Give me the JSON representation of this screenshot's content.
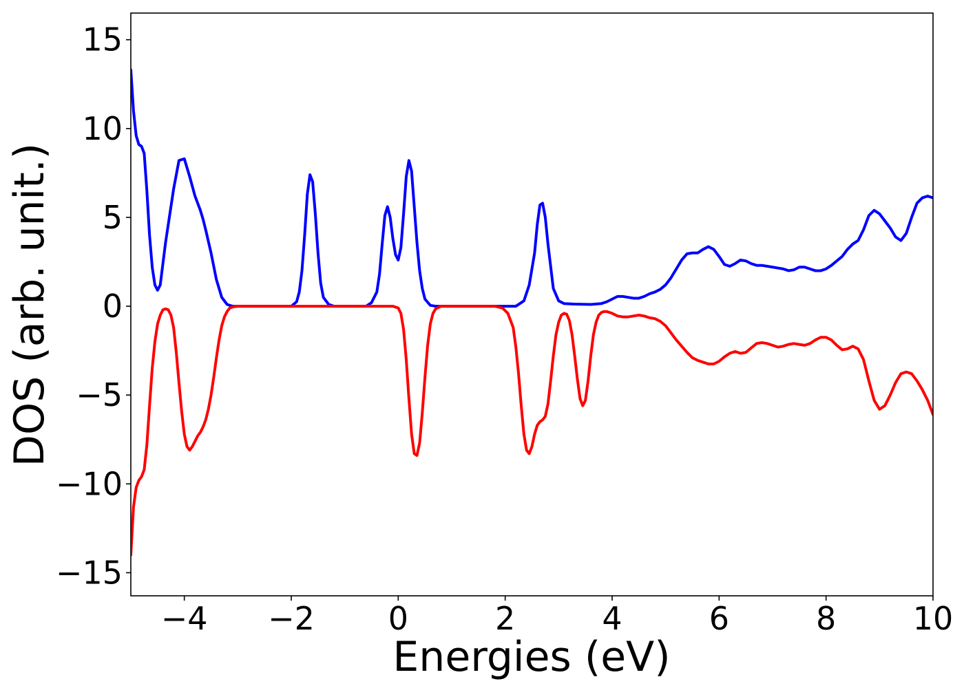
{
  "chart_data": {
    "type": "line",
    "xlabel": "Energies (eV)",
    "ylabel": "DOS (arb. unit.)",
    "xlim": [
      -5,
      10
    ],
    "ylim": [
      -16.3,
      16.5
    ],
    "grid": false,
    "legend": "none",
    "x_ticks": [
      -4,
      -2,
      0,
      2,
      4,
      6,
      8,
      10
    ],
    "x_tick_labels": [
      "−4",
      "−2",
      "0",
      "2",
      "4",
      "6",
      "8",
      "10"
    ],
    "y_ticks": [
      -15,
      -10,
      -5,
      0,
      5,
      10,
      15
    ],
    "y_tick_labels": [
      "−15",
      "−10",
      "−5",
      "0",
      "5",
      "10",
      "15"
    ],
    "series": [
      {
        "color": "#0000ff",
        "x": [
          -5.0,
          -4.95,
          -4.9,
          -4.85,
          -4.8,
          -4.75,
          -4.7,
          -4.65,
          -4.6,
          -4.55,
          -4.5,
          -4.45,
          -4.4,
          -4.35,
          -4.3,
          -4.2,
          -4.1,
          -4.0,
          -3.9,
          -3.8,
          -3.75,
          -3.7,
          -3.65,
          -3.6,
          -3.5,
          -3.4,
          -3.3,
          -3.2,
          -3.1,
          -3.0,
          -2.9,
          -2.8,
          -2.5,
          -2.2,
          -2.0,
          -1.9,
          -1.85,
          -1.8,
          -1.75,
          -1.7,
          -1.65,
          -1.6,
          -1.55,
          -1.5,
          -1.45,
          -1.4,
          -1.3,
          -1.2,
          -1.0,
          -0.8,
          -0.6,
          -0.5,
          -0.4,
          -0.35,
          -0.3,
          -0.25,
          -0.2,
          -0.15,
          -0.1,
          -0.05,
          0.0,
          0.05,
          0.1,
          0.15,
          0.2,
          0.25,
          0.3,
          0.35,
          0.4,
          0.45,
          0.5,
          0.6,
          0.7,
          0.8,
          1.0,
          1.5,
          2.0,
          2.2,
          2.35,
          2.45,
          2.55,
          2.6,
          2.65,
          2.7,
          2.75,
          2.8,
          2.9,
          3.0,
          3.1,
          3.3,
          3.6,
          3.8,
          3.9,
          4.0,
          4.1,
          4.2,
          4.3,
          4.4,
          4.5,
          4.6,
          4.7,
          4.8,
          4.9,
          5.0,
          5.1,
          5.2,
          5.3,
          5.4,
          5.5,
          5.6,
          5.7,
          5.8,
          5.9,
          6.0,
          6.1,
          6.2,
          6.3,
          6.4,
          6.5,
          6.6,
          6.7,
          6.8,
          6.9,
          7.0,
          7.1,
          7.2,
          7.3,
          7.4,
          7.5,
          7.6,
          7.7,
          7.8,
          7.9,
          8.0,
          8.1,
          8.2,
          8.3,
          8.4,
          8.5,
          8.6,
          8.7,
          8.8,
          8.9,
          9.0,
          9.1,
          9.2,
          9.3,
          9.4,
          9.5,
          9.6,
          9.7,
          9.8,
          9.9,
          10.0
        ],
        "y": [
          13.3,
          11.0,
          9.6,
          9.1,
          9.0,
          8.6,
          6.5,
          4.0,
          2.2,
          1.2,
          0.9,
          1.2,
          2.4,
          3.6,
          4.6,
          6.6,
          8.2,
          8.3,
          7.3,
          6.2,
          5.8,
          5.4,
          4.9,
          4.3,
          3.0,
          1.5,
          0.5,
          0.1,
          0.0,
          0.0,
          0.0,
          0.0,
          0.0,
          0.0,
          0.0,
          0.25,
          0.8,
          2.0,
          4.0,
          6.3,
          7.4,
          7.0,
          5.2,
          3.0,
          1.3,
          0.5,
          0.1,
          0.0,
          0.0,
          0.0,
          0.0,
          0.2,
          0.8,
          1.8,
          3.5,
          5.1,
          5.6,
          5.0,
          3.8,
          2.9,
          2.6,
          3.3,
          5.2,
          7.3,
          8.2,
          7.6,
          5.6,
          3.6,
          2.0,
          1.0,
          0.4,
          0.05,
          0.0,
          0.0,
          0.0,
          0.0,
          0.0,
          0.0,
          0.3,
          1.2,
          3.0,
          4.6,
          5.7,
          5.8,
          5.0,
          3.5,
          1.0,
          0.3,
          0.15,
          0.12,
          0.1,
          0.15,
          0.25,
          0.4,
          0.55,
          0.55,
          0.5,
          0.45,
          0.45,
          0.55,
          0.7,
          0.8,
          0.95,
          1.2,
          1.6,
          2.1,
          2.6,
          2.95,
          3.0,
          3.0,
          3.2,
          3.35,
          3.2,
          2.8,
          2.35,
          2.25,
          2.4,
          2.6,
          2.55,
          2.4,
          2.3,
          2.3,
          2.25,
          2.2,
          2.15,
          2.1,
          2.0,
          2.05,
          2.2,
          2.2,
          2.1,
          2.0,
          2.0,
          2.1,
          2.3,
          2.55,
          2.8,
          3.2,
          3.5,
          3.7,
          4.3,
          5.1,
          5.4,
          5.2,
          4.8,
          4.4,
          3.9,
          3.7,
          4.1,
          5.0,
          5.8,
          6.1,
          6.2,
          6.1
        ]
      },
      {
        "color": "#ff0000",
        "x": [
          -5.0,
          -4.95,
          -4.9,
          -4.85,
          -4.8,
          -4.75,
          -4.7,
          -4.65,
          -4.6,
          -4.55,
          -4.5,
          -4.45,
          -4.4,
          -4.35,
          -4.3,
          -4.25,
          -4.2,
          -4.15,
          -4.1,
          -4.05,
          -4.0,
          -3.95,
          -3.9,
          -3.85,
          -3.8,
          -3.75,
          -3.7,
          -3.65,
          -3.6,
          -3.55,
          -3.5,
          -3.45,
          -3.4,
          -3.35,
          -3.3,
          -3.25,
          -3.2,
          -3.15,
          -3.1,
          -3.05,
          -3.0,
          -2.95,
          -2.9,
          -2.85,
          -2.8,
          -2.5,
          -0.1,
          0.0,
          0.05,
          0.1,
          0.15,
          0.2,
          0.25,
          0.3,
          0.35,
          0.4,
          0.45,
          0.5,
          0.55,
          0.6,
          0.65,
          0.7,
          0.8,
          1.0,
          1.8,
          1.95,
          2.05,
          2.15,
          2.2,
          2.25,
          2.3,
          2.35,
          2.4,
          2.45,
          2.5,
          2.55,
          2.6,
          2.65,
          2.7,
          2.75,
          2.8,
          2.85,
          2.9,
          2.95,
          3.0,
          3.05,
          3.1,
          3.15,
          3.2,
          3.25,
          3.3,
          3.35,
          3.4,
          3.45,
          3.5,
          3.55,
          3.6,
          3.65,
          3.7,
          3.75,
          3.8,
          3.85,
          3.9,
          3.95,
          4.0,
          4.1,
          4.2,
          4.3,
          4.4,
          4.5,
          4.6,
          4.7,
          4.8,
          4.9,
          5.0,
          5.1,
          5.2,
          5.3,
          5.4,
          5.5,
          5.6,
          5.7,
          5.8,
          5.9,
          6.0,
          6.1,
          6.2,
          6.3,
          6.4,
          6.5,
          6.6,
          6.7,
          6.8,
          6.9,
          7.0,
          7.1,
          7.2,
          7.3,
          7.4,
          7.5,
          7.6,
          7.7,
          7.8,
          7.9,
          8.0,
          8.1,
          8.2,
          8.3,
          8.4,
          8.5,
          8.6,
          8.7,
          8.8,
          8.9,
          9.0,
          9.1,
          9.2,
          9.3,
          9.4,
          9.5,
          9.6,
          9.7,
          9.8,
          9.9,
          10.0
        ],
        "y": [
          -14.0,
          -11.3,
          -10.2,
          -9.8,
          -9.6,
          -9.2,
          -7.8,
          -5.6,
          -3.5,
          -2.0,
          -1.0,
          -0.5,
          -0.2,
          -0.15,
          -0.2,
          -0.5,
          -1.2,
          -2.6,
          -4.3,
          -5.9,
          -7.2,
          -7.9,
          -8.1,
          -7.9,
          -7.6,
          -7.3,
          -7.1,
          -6.8,
          -6.4,
          -5.8,
          -5.0,
          -4.0,
          -2.9,
          -1.9,
          -1.1,
          -0.6,
          -0.3,
          -0.1,
          -0.05,
          -0.02,
          0.0,
          0.0,
          0.0,
          0.0,
          0.0,
          0.0,
          0.0,
          -0.1,
          -0.4,
          -1.3,
          -3.0,
          -5.2,
          -7.2,
          -8.3,
          -8.4,
          -7.7,
          -6.0,
          -4.0,
          -2.2,
          -1.0,
          -0.4,
          -0.15,
          0.0,
          0.0,
          0.0,
          -0.1,
          -0.4,
          -1.2,
          -2.3,
          -3.8,
          -5.6,
          -7.2,
          -8.1,
          -8.3,
          -7.9,
          -7.2,
          -6.7,
          -6.5,
          -6.4,
          -6.2,
          -5.5,
          -4.2,
          -2.8,
          -1.6,
          -0.9,
          -0.5,
          -0.4,
          -0.45,
          -0.8,
          -1.6,
          -2.8,
          -4.1,
          -5.2,
          -5.6,
          -5.3,
          -4.2,
          -2.8,
          -1.6,
          -0.9,
          -0.5,
          -0.35,
          -0.3,
          -0.3,
          -0.35,
          -0.4,
          -0.55,
          -0.6,
          -0.6,
          -0.55,
          -0.5,
          -0.55,
          -0.65,
          -0.7,
          -0.85,
          -1.1,
          -1.5,
          -1.9,
          -2.25,
          -2.6,
          -2.9,
          -3.05,
          -3.15,
          -3.25,
          -3.25,
          -3.1,
          -2.85,
          -2.65,
          -2.55,
          -2.65,
          -2.6,
          -2.35,
          -2.1,
          -2.05,
          -2.1,
          -2.2,
          -2.3,
          -2.25,
          -2.15,
          -2.1,
          -2.15,
          -2.2,
          -2.1,
          -1.9,
          -1.75,
          -1.75,
          -1.9,
          -2.2,
          -2.45,
          -2.4,
          -2.25,
          -2.4,
          -3.0,
          -4.2,
          -5.3,
          -5.8,
          -5.6,
          -5.0,
          -4.3,
          -3.8,
          -3.7,
          -3.8,
          -4.2,
          -4.7,
          -5.3,
          -6.1
        ]
      }
    ]
  }
}
